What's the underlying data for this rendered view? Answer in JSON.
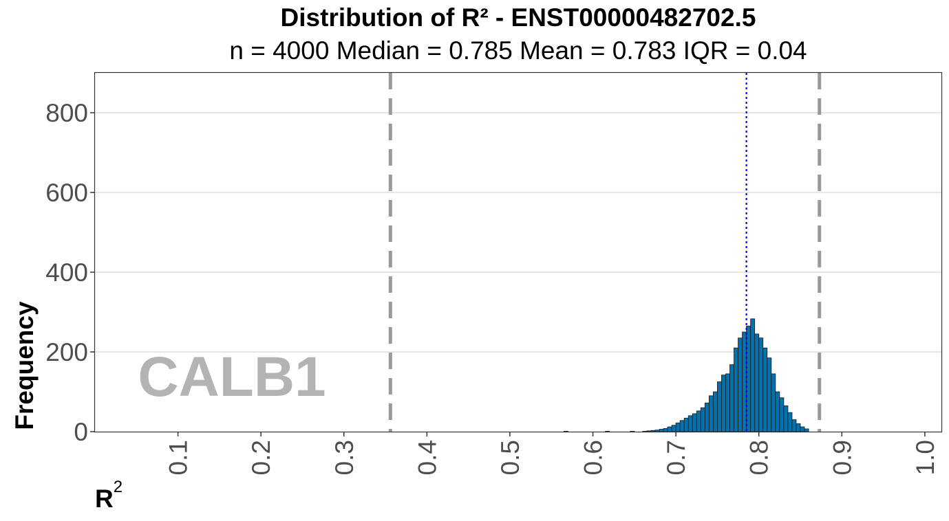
{
  "chart_data": {
    "type": "bar",
    "title": "Distribution of R² - ENST00000482702.5",
    "subtitle": "n = 4000   Median = 0.785   Mean = 0.783   IQR = 0.04",
    "xlabel": "R",
    "xlabel_sup": "2",
    "ylabel": "Frequency",
    "watermark": "CALB1",
    "xlim": [
      0,
      1.02
    ],
    "ylim": [
      0,
      900
    ],
    "x_ticks": [
      "0.1",
      "0.2",
      "0.3",
      "0.4",
      "0.5",
      "0.6",
      "0.7",
      "0.8",
      "0.9",
      "1.0"
    ],
    "x_tick_values": [
      0.1,
      0.2,
      0.3,
      0.4,
      0.5,
      0.6,
      0.7,
      0.8,
      0.9,
      1.0
    ],
    "y_ticks": [
      "0",
      "200",
      "400",
      "600",
      "800"
    ],
    "y_tick_values": [
      0,
      200,
      400,
      600,
      800
    ],
    "grid": "horizontal",
    "bin_width": 0.005,
    "bin_starts": [
      0.565,
      0.615,
      0.645,
      0.66,
      0.665,
      0.67,
      0.675,
      0.68,
      0.685,
      0.69,
      0.695,
      0.7,
      0.705,
      0.71,
      0.715,
      0.72,
      0.725,
      0.73,
      0.735,
      0.74,
      0.745,
      0.75,
      0.755,
      0.76,
      0.765,
      0.77,
      0.775,
      0.78,
      0.785,
      0.79,
      0.795,
      0.8,
      0.805,
      0.81,
      0.815,
      0.82,
      0.825,
      0.83,
      0.835,
      0.84,
      0.845,
      0.85,
      0.855
    ],
    "counts": [
      1,
      1,
      1,
      1,
      2,
      3,
      4,
      6,
      8,
      12,
      16,
      22,
      28,
      34,
      40,
      45,
      52,
      60,
      72,
      90,
      100,
      125,
      142,
      145,
      168,
      210,
      235,
      250,
      265,
      283,
      245,
      235,
      210,
      185,
      145,
      100,
      85,
      65,
      48,
      30,
      20,
      12,
      7
    ],
    "bar_color": "#0072B2",
    "reference_lines": [
      {
        "x": 0.356,
        "style": "dashed",
        "color": "#999999"
      },
      {
        "x": 0.873,
        "style": "dashed",
        "color": "#999999"
      },
      {
        "x": 0.785,
        "style": "dotted",
        "color": "#0000FF"
      }
    ]
  }
}
